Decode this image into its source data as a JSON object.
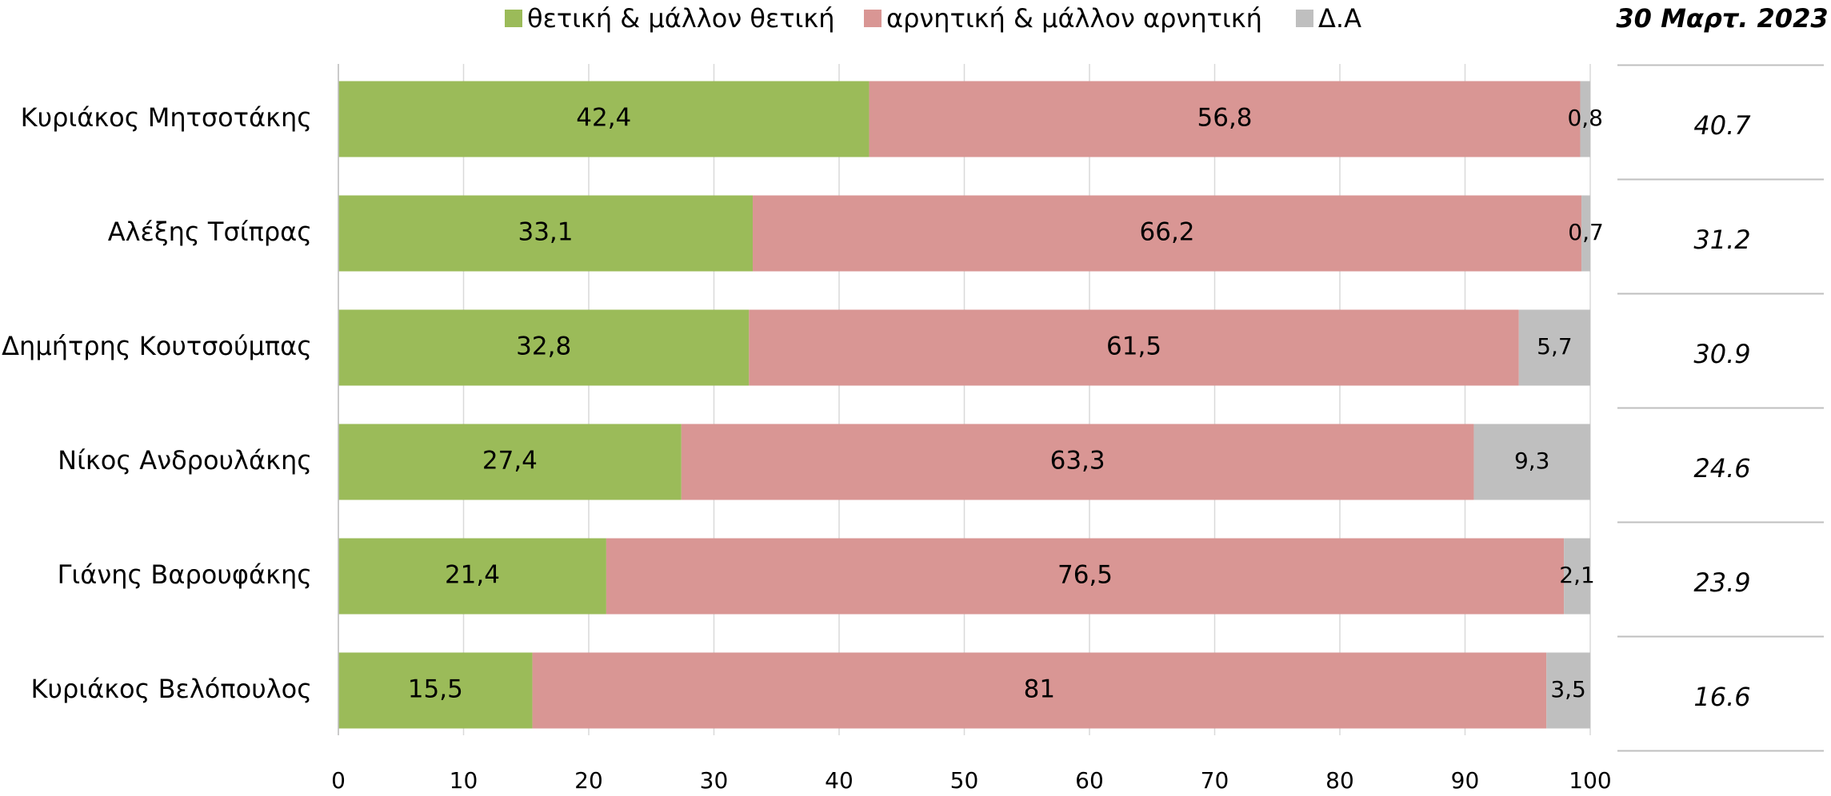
{
  "chart_data": {
    "type": "stacked-bar-horizontal",
    "categories": [
      "Κυριάκος Μητσοτάκης",
      "Αλέξης Τσίπρας",
      "Δημήτρης Κουτσούμπας",
      "Νίκος Ανδρουλάκης",
      "Γιάνης Βαρουφάκης",
      "Κυριάκος Βελόπουλος"
    ],
    "series": [
      {
        "name": "θετική & μάλλον θετική",
        "color": "#9bbb59",
        "values": [
          42.4,
          33.1,
          32.8,
          27.4,
          21.4,
          15.5
        ],
        "value_labels": [
          "42,4",
          "33,1",
          "32,8",
          "27,4",
          "21,4",
          "15,5"
        ]
      },
      {
        "name": "αρνητική & μάλλον αρνητική",
        "color": "#d99694",
        "values": [
          56.8,
          66.2,
          61.5,
          63.3,
          76.5,
          81
        ],
        "value_labels": [
          "56,8",
          "66,2",
          "61,5",
          "63,3",
          "76,5",
          "81"
        ]
      },
      {
        "name": "Δ.Α",
        "color": "#bfbfbf",
        "values": [
          0.8,
          0.7,
          5.7,
          9.3,
          2.1,
          3.5
        ],
        "value_labels": [
          "0,8",
          "0,7",
          "5,7",
          "9,3",
          "2,1",
          "3,5"
        ]
      }
    ],
    "xlim": [
      0,
      100
    ],
    "xticks": [
      0,
      10,
      20,
      30,
      40,
      50,
      60,
      70,
      80,
      90,
      100
    ],
    "grid": true,
    "legend": "top",
    "side_table": {
      "title": "30 Μαρτ. 2023",
      "values": [
        40.7,
        31.2,
        30.9,
        24.6,
        23.9,
        16.6
      ]
    }
  }
}
